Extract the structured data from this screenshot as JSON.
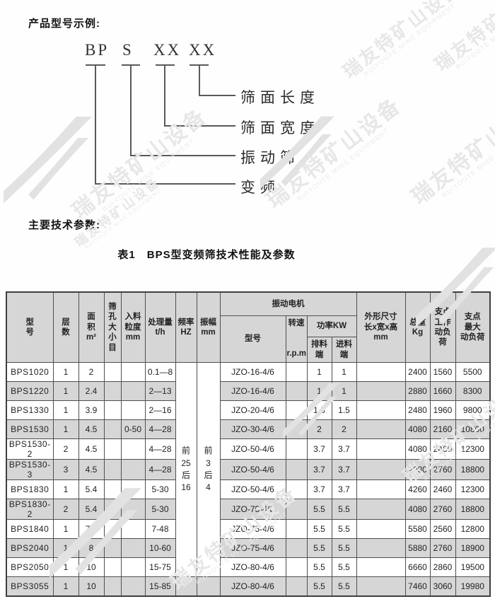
{
  "page": {
    "section1_heading": "产品型号示例:",
    "section2_heading": "主要技术参数:",
    "table_title": "表1　BPS型变频筛技术性能及参数"
  },
  "watermark": {
    "cn": "瑞友特矿山设备",
    "en": "RUIYOUTE MINE EQUIPMENT"
  },
  "model_diagram": {
    "code_parts": [
      "BP",
      "S",
      "XX",
      "XX"
    ],
    "labels": [
      "筛面长度",
      "筛面宽度",
      "振动筛",
      "变频"
    ]
  },
  "table": {
    "header": {
      "model": "型\n号",
      "layers": "层\n数",
      "area": "面\n积\nm²",
      "mesh": "筛\n孔\n大\n小\n目",
      "feed": "入料\n粒度\nmm",
      "capacity": "处理量\nt/h",
      "freq": "频率\nHZ",
      "amp": "振幅\nmm",
      "motor_group": "振动电机",
      "motor_model": "型号",
      "speed": "转速\n\nr.p.m",
      "power_group": "功率KW",
      "power_out": "排料\n端",
      "power_in": "进料\n端",
      "dims": "外形尺寸\n长x宽x高\nmm",
      "weight": "总重\nKg",
      "work_load": "支点\n工作\n动负荷",
      "max_load": "支点\n最大\n动负荷"
    },
    "merged": {
      "freq": "前\n25\n后\n16",
      "amp": "前\n3\n后\n4"
    },
    "rows": [
      {
        "model": "BPS1020",
        "layers": "1",
        "area": "2",
        "mesh": "",
        "feed": "",
        "capacity": "0.1—8",
        "motor": "JZO-16-4/6",
        "speed": "",
        "power_out": "1",
        "power_in": "1",
        "dims": "",
        "weight": "2400",
        "work_load": "1560",
        "max_load": "5500"
      },
      {
        "model": "BPS1220",
        "layers": "1",
        "area": "2.4",
        "mesh": "",
        "feed": "",
        "capacity": "2—13",
        "motor": "JZO-16-4/6",
        "speed": "",
        "power_out": "1",
        "power_in": "1",
        "dims": "",
        "weight": "2880",
        "work_load": "1660",
        "max_load": "8300"
      },
      {
        "model": "BPS1330",
        "layers": "1",
        "area": "3.9",
        "mesh": "",
        "feed": "",
        "capacity": "2—16",
        "motor": "JZO-20-4/6",
        "speed": "",
        "power_out": "1.5",
        "power_in": "1.5",
        "dims": "",
        "weight": "2480",
        "work_load": "1960",
        "max_load": "9800"
      },
      {
        "model": "BPS1530",
        "layers": "1",
        "area": "4.5",
        "mesh": "",
        "feed": "0-50",
        "capacity": "4—28",
        "motor": "JZO-30-4/6",
        "speed": "",
        "power_out": "2",
        "power_in": "2",
        "dims": "",
        "weight": "4080",
        "work_load": "2160",
        "max_load": "10800"
      },
      {
        "model": "BPS1530-2",
        "layers": "2",
        "area": "4.5",
        "mesh": "",
        "feed": "",
        "capacity": "4—28",
        "motor": "JZO-50-4/6",
        "speed": "",
        "power_out": "3.7",
        "power_in": "3.7",
        "dims": "",
        "weight": "4080",
        "work_load": "2460",
        "max_load": "12300"
      },
      {
        "model": "BPS1530-3",
        "layers": "3",
        "area": "4.5",
        "mesh": "",
        "feed": "",
        "capacity": "4—28",
        "motor": "JZO-50-4/6",
        "speed": "",
        "power_out": "3.7",
        "power_in": "3.7",
        "dims": "",
        "weight": "4080",
        "work_load": "2760",
        "max_load": "18800"
      },
      {
        "model": "BPS1830",
        "layers": "1",
        "area": "5.4",
        "mesh": "",
        "feed": "",
        "capacity": "5-30",
        "motor": "JZO-50-4/6",
        "speed": "",
        "power_out": "3.7",
        "power_in": "3.7",
        "dims": "",
        "weight": "4260",
        "work_load": "2460",
        "max_load": "12300"
      },
      {
        "model": "BPS1830-2",
        "layers": "2",
        "area": "5.4",
        "mesh": "",
        "feed": "",
        "capacity": "5-30",
        "motor": "JZO-75-4/6",
        "speed": "",
        "power_out": "5.5",
        "power_in": "5.5",
        "dims": "",
        "weight": "4080",
        "work_load": "2760",
        "max_load": "18800"
      },
      {
        "model": "BPS1840",
        "layers": "1",
        "area": "7.2",
        "mesh": "",
        "feed": "",
        "capacity": "7-48",
        "motor": "JZO-75-4/6",
        "speed": "",
        "power_out": "5.5",
        "power_in": "5.5",
        "dims": "",
        "weight": "5580",
        "work_load": "2560",
        "max_load": "12800"
      },
      {
        "model": "BPS2040",
        "layers": "1",
        "area": "8",
        "mesh": "",
        "feed": "",
        "capacity": "10-60",
        "motor": "JZO-75-4/6",
        "speed": "",
        "power_out": "5.5",
        "power_in": "5.5",
        "dims": "",
        "weight": "5880",
        "work_load": "2760",
        "max_load": "18900"
      },
      {
        "model": "BPS2050",
        "layers": "1",
        "area": "10",
        "mesh": "",
        "feed": "",
        "capacity": "15-75",
        "motor": "JZO-80-4/6",
        "speed": "",
        "power_out": "5.5",
        "power_in": "5.5",
        "dims": "",
        "weight": "6660",
        "work_load": "2860",
        "max_load": "19500"
      },
      {
        "model": "BPS3055",
        "layers": "1",
        "area": "10",
        "mesh": "",
        "feed": "",
        "capacity": "15-85",
        "motor": "JZO-80-4/6",
        "speed": "",
        "power_out": "5.5",
        "power_in": "5.5",
        "dims": "",
        "weight": "7460",
        "work_load": "3060",
        "max_load": "19980"
      }
    ]
  },
  "colors": {
    "header_bg": "#d6d6d6",
    "stripe_bg": "#d6d6d6",
    "border": "#4f4f4f",
    "watermark": "#e7e7e7"
  }
}
